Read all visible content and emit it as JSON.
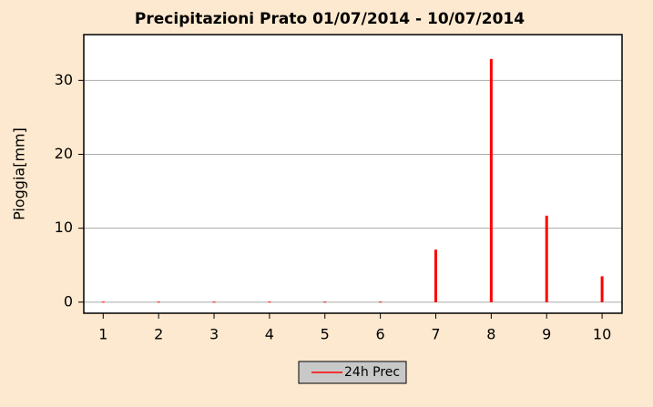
{
  "chart_data": {
    "type": "bar",
    "title": "Precipitazioni Prato 01/07/2014 - 10/07/2014",
    "y_label": "Pioggia[mm]",
    "x": [
      1,
      2,
      3,
      4,
      5,
      6,
      7,
      8,
      9,
      10
    ],
    "series": [
      {
        "name": "24h Prec",
        "color": "#ff0000",
        "values": [
          0,
          0,
          0,
          0,
          0,
          0,
          7.1,
          32.9,
          11.7,
          3.5
        ]
      }
    ],
    "xlim": [
      0.65,
      10.36
    ],
    "xticks": [
      1,
      2,
      3,
      4,
      5,
      6,
      7,
      8,
      9,
      10
    ],
    "ylim": [
      -1.5,
      36.2
    ],
    "yticks": [
      0,
      10,
      20,
      30
    ],
    "grid": true,
    "legend": "bottom"
  }
}
